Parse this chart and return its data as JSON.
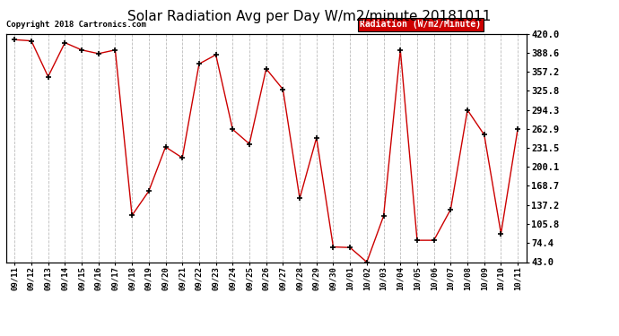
{
  "title": "Solar Radiation Avg per Day W/m2/minute 20181011",
  "copyright": "Copyright 2018 Cartronics.com",
  "legend_label": "Radiation (W/m2/Minute)",
  "legend_bg": "#cc0000",
  "legend_text_color": "#ffffff",
  "line_color": "#cc0000",
  "marker_color": "#000000",
  "background_color": "#ffffff",
  "grid_color": "#bbbbbb",
  "title_fontsize": 11,
  "ylim": [
    43.0,
    420.0
  ],
  "yticks": [
    43.0,
    74.4,
    105.8,
    137.2,
    168.7,
    200.1,
    231.5,
    262.9,
    294.3,
    325.8,
    357.2,
    388.6,
    420.0
  ],
  "dates": [
    "09/11",
    "09/12",
    "09/13",
    "09/14",
    "09/15",
    "09/16",
    "09/17",
    "09/18",
    "09/19",
    "09/20",
    "09/21",
    "09/22",
    "09/23",
    "09/24",
    "09/25",
    "09/26",
    "09/27",
    "09/28",
    "09/29",
    "09/30",
    "10/01",
    "10/02",
    "10/03",
    "10/04",
    "10/05",
    "10/06",
    "10/07",
    "10/08",
    "10/09",
    "10/10",
    "10/11"
  ],
  "values": [
    410.0,
    408.0,
    349.0,
    405.0,
    393.0,
    387.0,
    393.0,
    120.0,
    160.0,
    233.0,
    215.0,
    370.0,
    385.0,
    262.0,
    238.0,
    362.0,
    328.0,
    148.0,
    248.0,
    68.0,
    67.0,
    43.0,
    119.0,
    393.0,
    79.0,
    79.0,
    130.0,
    294.0,
    253.0,
    90.0,
    263.0
  ]
}
